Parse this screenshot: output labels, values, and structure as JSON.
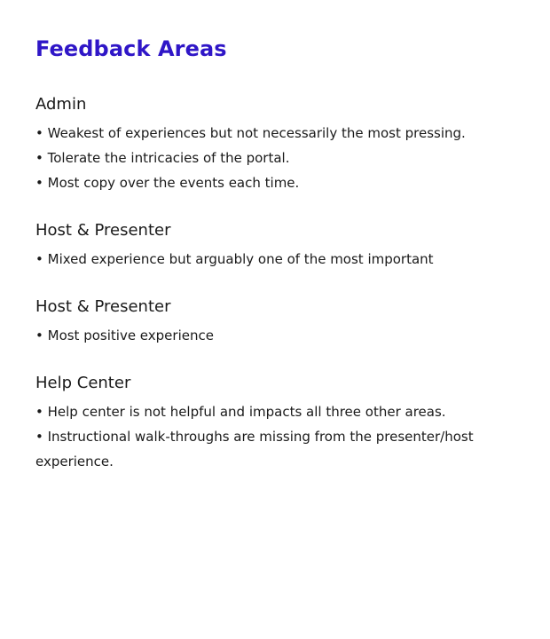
{
  "title": "Feedback Areas",
  "sections": [
    {
      "heading": "Admin",
      "bullets": [
        "Weakest of experiences but not necessarily the most pressing.",
        "Tolerate the intricacies of the portal.",
        "Most copy over the events each time."
      ]
    },
    {
      "heading": "Host & Presenter",
      "bullets": [
        "Mixed experience but arguably one of the most important"
      ]
    },
    {
      "heading": "Host & Presenter",
      "bullets": [
        "Most positive experience"
      ]
    },
    {
      "heading": "Help Center",
      "bullets": [
        "Help center is not helpful and impacts all three other areas.",
        "Instructional walk-throughs are missing from the presenter/host experience."
      ]
    }
  ]
}
